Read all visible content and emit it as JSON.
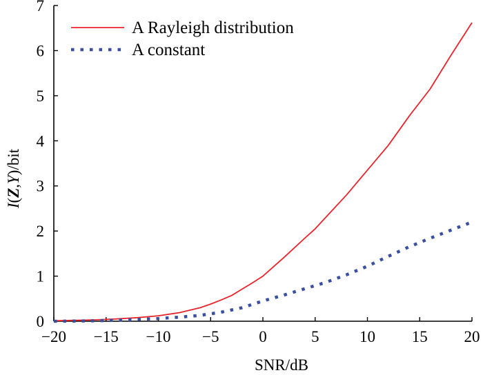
{
  "chart_data": {
    "type": "line",
    "xlabel": "SNR/dB",
    "ylabel_parts": [
      {
        "text": "I",
        "italic": true,
        "bold": false
      },
      {
        "text": "(",
        "italic": false,
        "bold": false
      },
      {
        "text": "Z",
        "italic": true,
        "bold": true
      },
      {
        "text": ",",
        "italic": false,
        "bold": false
      },
      {
        "text": "Y",
        "italic": true,
        "bold": false
      },
      {
        "text": ")/bit",
        "italic": false,
        "bold": false
      }
    ],
    "xlim": [
      -20,
      20
    ],
    "ylim": [
      0,
      7
    ],
    "xticks": [
      -20,
      -15,
      -10,
      -5,
      0,
      5,
      10,
      15,
      20
    ],
    "xtick_labels": [
      "−20",
      "−15",
      "−10",
      "−5",
      "0",
      "5",
      "10",
      "15",
      "20"
    ],
    "yticks": [
      0,
      1,
      2,
      3,
      4,
      5,
      6,
      7
    ],
    "ytick_labels": [
      "0",
      "1",
      "2",
      "3",
      "4",
      "5",
      "6",
      "7"
    ],
    "grid": false,
    "legend_position": "top-left",
    "series": [
      {
        "name": "A Rayleigh distribution",
        "color": "#e8242a",
        "style": "solid",
        "x": [
          -20,
          -18,
          -16,
          -14,
          -12,
          -10,
          -8,
          -6,
          -5,
          -4,
          -3,
          -2,
          -1,
          0,
          2,
          4,
          5,
          6,
          8,
          10,
          12,
          14,
          16,
          18,
          20
        ],
        "y": [
          0.01,
          0.02,
          0.03,
          0.05,
          0.08,
          0.12,
          0.19,
          0.3,
          0.38,
          0.47,
          0.57,
          0.71,
          0.85,
          1.0,
          1.41,
          1.84,
          2.05,
          2.3,
          2.8,
          3.35,
          3.9,
          4.55,
          5.15,
          5.9,
          6.62
        ]
      },
      {
        "name": "A constant",
        "color": "#3a4fa0",
        "style": "dotted",
        "x": [
          -20,
          -18,
          -16,
          -14,
          -12,
          -10,
          -8,
          -6,
          -4,
          -2,
          0,
          2,
          4,
          6,
          8,
          10,
          12,
          14,
          16,
          18,
          20
        ],
        "y": [
          0.0,
          0.005,
          0.01,
          0.02,
          0.04,
          0.06,
          0.09,
          0.13,
          0.2,
          0.3,
          0.45,
          0.58,
          0.72,
          0.86,
          1.03,
          1.22,
          1.44,
          1.65,
          1.84,
          2.02,
          2.2
        ]
      }
    ]
  }
}
